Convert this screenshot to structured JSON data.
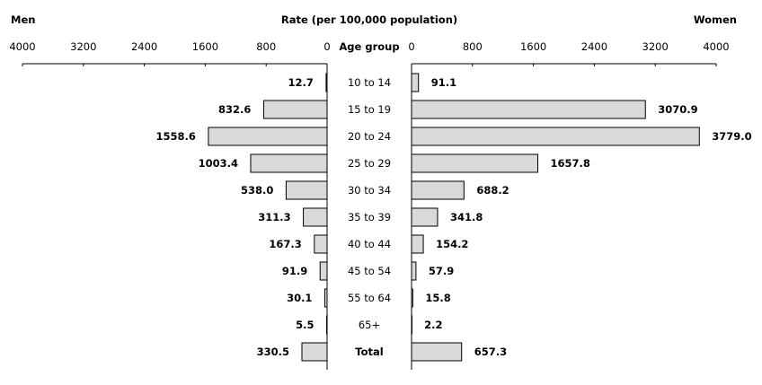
{
  "chart_data": {
    "type": "bar",
    "title": "Rate (per 100,000 population)",
    "left_label": "Men",
    "right_label": "Women",
    "category_header": "Age group",
    "xlim": [
      0,
      4000
    ],
    "ticks_left": [
      "4000",
      "3200",
      "2400",
      "1600",
      "800",
      "0"
    ],
    "ticks_right": [
      "0",
      "800",
      "1600",
      "2400",
      "3200",
      "4000"
    ],
    "tick_values": [
      0,
      800,
      1600,
      2400,
      3200,
      4000
    ],
    "categories": [
      "10 to 14",
      "15 to 19",
      "20 to 24",
      "25 to 29",
      "30 to 34",
      "35 to 39",
      "40 to 44",
      "45 to 54",
      "55 to 64",
      "65+",
      "Total"
    ],
    "series": [
      {
        "name": "Men",
        "values": [
          12.7,
          832.6,
          1558.6,
          1003.4,
          538.0,
          311.3,
          167.3,
          91.9,
          30.1,
          5.5,
          330.5
        ],
        "labels": [
          "12.7",
          "832.6",
          "1558.6",
          "1003.4",
          "538.0",
          "311.3",
          "167.3",
          "91.9",
          "30.1",
          "5.5",
          "330.5"
        ]
      },
      {
        "name": "Women",
        "values": [
          91.1,
          3070.9,
          3779.0,
          1657.8,
          688.2,
          341.8,
          154.2,
          57.9,
          15.8,
          2.2,
          657.3
        ],
        "labels": [
          "91.1",
          "3070.9",
          "3779.0",
          "1657.8",
          "688.2",
          "341.8",
          "154.2",
          "57.9",
          "15.8",
          "2.2",
          "657.3"
        ]
      }
    ],
    "bar_color": "#d9d9d9",
    "grid": false
  }
}
